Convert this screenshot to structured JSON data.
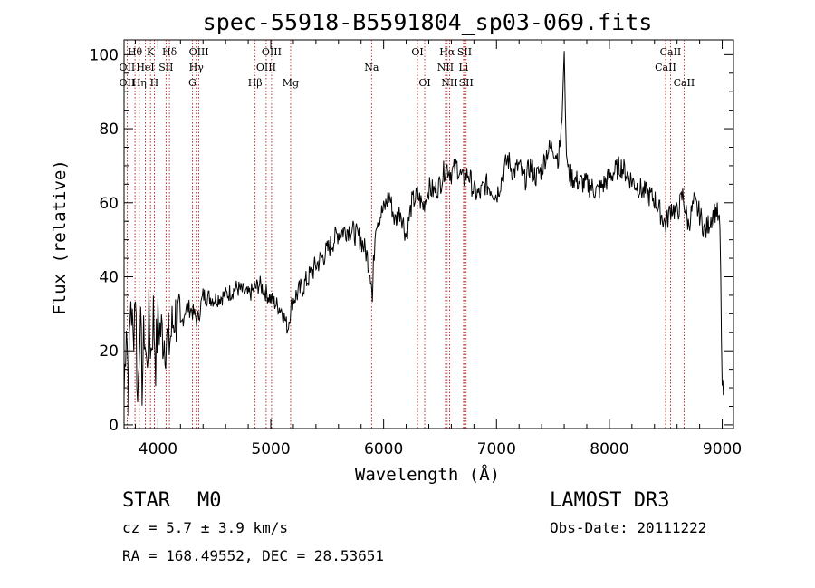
{
  "chart_data": {
    "type": "line",
    "title": "spec-55918-B5591804_sp03-069.fits",
    "xlabel": "Wavelength (Å)",
    "ylabel": "Flux (relative)",
    "xlim": [
      3700,
      9100
    ],
    "ylim": [
      -1,
      104
    ],
    "xticks": [
      4000,
      5000,
      6000,
      7000,
      8000,
      9000
    ],
    "yticks": [
      0,
      20,
      40,
      60,
      80,
      100
    ],
    "xtick_labels": [
      "4000",
      "5000",
      "6000",
      "7000",
      "8000",
      "9000"
    ],
    "ytick_labels": [
      "0",
      "20",
      "40",
      "60",
      "80",
      "100"
    ],
    "series": [
      {
        "name": "spectrum",
        "x": [
          3700,
          3720,
          3740,
          3760,
          3780,
          3800,
          3820,
          3840,
          3860,
          3880,
          3900,
          3920,
          3940,
          3960,
          3980,
          4000,
          4050,
          4100,
          4150,
          4200,
          4250,
          4300,
          4350,
          4400,
          4500,
          4600,
          4700,
          4800,
          4900,
          5000,
          5100,
          5150,
          5180,
          5200,
          5300,
          5400,
          5500,
          5600,
          5700,
          5800,
          5850,
          5890,
          5900,
          5910,
          5930,
          6000,
          6050,
          6100,
          6150,
          6200,
          6250,
          6300,
          6350,
          6400,
          6450,
          6500,
          6550,
          6600,
          6650,
          6700,
          6750,
          6800,
          6850,
          6900,
          6950,
          7000,
          7050,
          7100,
          7150,
          7200,
          7250,
          7300,
          7350,
          7400,
          7450,
          7500,
          7550,
          7580,
          7600,
          7610,
          7620,
          7640,
          7700,
          7800,
          7900,
          8000,
          8100,
          8200,
          8300,
          8400,
          8500,
          8550,
          8600,
          8650,
          8700,
          8750,
          8800,
          8850,
          8900,
          8950,
          8980,
          9000,
          9010
        ],
        "y": [
          8,
          30,
          10,
          35,
          22,
          38,
          5,
          30,
          12,
          26,
          15,
          28,
          20,
          30,
          18,
          27,
          24,
          22,
          30,
          26,
          32,
          31,
          28,
          35,
          34,
          35,
          37,
          35,
          38,
          34,
          31,
          26,
          32,
          34,
          38,
          43,
          47,
          52,
          53,
          50,
          46,
          40,
          33,
          43,
          55,
          58,
          62,
          55,
          58,
          51,
          60,
          62,
          59,
          64,
          63,
          65,
          70,
          68,
          70,
          66,
          68,
          63,
          62,
          65,
          64,
          62,
          67,
          72,
          68,
          70,
          66,
          70,
          67,
          69,
          74,
          75,
          72,
          82,
          101,
          85,
          73,
          68,
          66,
          65,
          63,
          67,
          70,
          66,
          63,
          61,
          54,
          59,
          57,
          62,
          54,
          60,
          57,
          52,
          56,
          58,
          53,
          10,
          8
        ]
      }
    ],
    "lines": [
      {
        "label": "Hθ",
        "x": 3797,
        "row": 0
      },
      {
        "label": "OII",
        "x": 3727,
        "row": 1
      },
      {
        "label": "OII",
        "x": 3727,
        "row": 2
      },
      {
        "label": "K",
        "x": 3934,
        "row": 0
      },
      {
        "label": "HeI",
        "x": 3889,
        "row": 1
      },
      {
        "label": "Hη",
        "x": 3835,
        "row": 2
      },
      {
        "label": "SII",
        "x": 4072,
        "row": 1
      },
      {
        "label": "H",
        "x": 3968,
        "row": 2
      },
      {
        "label": "Hδ",
        "x": 4102,
        "row": 0
      },
      {
        "label": "OIII",
        "x": 4363,
        "row": 0
      },
      {
        "label": "Hγ",
        "x": 4340,
        "row": 1
      },
      {
        "label": "G",
        "x": 4305,
        "row": 2
      },
      {
        "label": "Hβ",
        "x": 4861,
        "row": 2
      },
      {
        "label": "OIII",
        "x": 5007,
        "row": 0
      },
      {
        "label": "OIII",
        "x": 4959,
        "row": 1
      },
      {
        "label": "Mg",
        "x": 5176,
        "row": 2
      },
      {
        "label": "Na",
        "x": 5893,
        "row": 1
      },
      {
        "label": "OI",
        "x": 6300,
        "row": 0
      },
      {
        "label": "OI",
        "x": 6364,
        "row": 2
      },
      {
        "label": "Hα",
        "x": 6563,
        "row": 0
      },
      {
        "label": "NII",
        "x": 6548,
        "row": 1
      },
      {
        "label": "NII",
        "x": 6584,
        "row": 2
      },
      {
        "label": "SII",
        "x": 6717,
        "row": 0
      },
      {
        "label": "Li",
        "x": 6708,
        "row": 1
      },
      {
        "label": "SII",
        "x": 6731,
        "row": 2
      },
      {
        "label": "CaII",
        "x": 8542,
        "row": 0
      },
      {
        "label": "CaII",
        "x": 8498,
        "row": 1
      },
      {
        "label": "CaII",
        "x": 8662,
        "row": 2
      }
    ]
  },
  "info": {
    "class": "STAR",
    "subclass": "M0",
    "survey": "LAMOST DR3",
    "cz": "cz = 5.7 ± 3.9 km/s",
    "obs_date": "Obs-Date: 20111222",
    "coords": "RA = 168.49552, DEC =  28.53651"
  }
}
